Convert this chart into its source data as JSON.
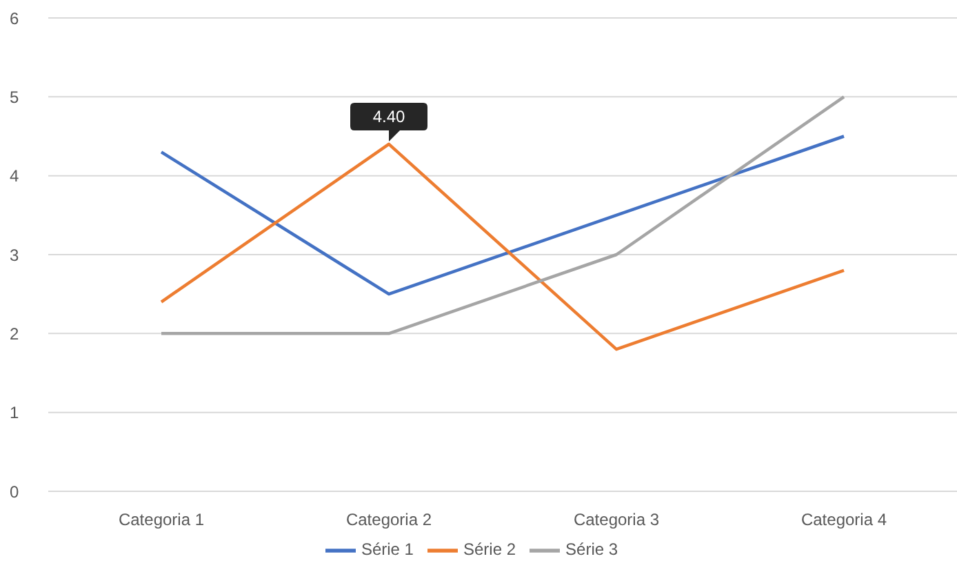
{
  "chart_data": {
    "type": "line",
    "categories": [
      "Categoria 1",
      "Categoria 2",
      "Categoria 3",
      "Categoria 4"
    ],
    "series": [
      {
        "name": "Série 1",
        "color": "#4472c4",
        "values": [
          4.3,
          2.5,
          3.5,
          4.5
        ]
      },
      {
        "name": "Série 2",
        "color": "#ed7d31",
        "values": [
          2.4,
          4.4,
          1.8,
          2.8
        ]
      },
      {
        "name": "Série 3",
        "color": "#a5a5a5",
        "values": [
          2,
          2,
          3,
          5
        ]
      }
    ],
    "ylim": [
      0,
      6
    ],
    "yticks": [
      0,
      1,
      2,
      3,
      4,
      5,
      6
    ],
    "grid": "y",
    "legend": "bottom",
    "annotations": [
      {
        "text": "4.40",
        "x": "Categoria 2",
        "y": 4.4
      }
    ]
  }
}
